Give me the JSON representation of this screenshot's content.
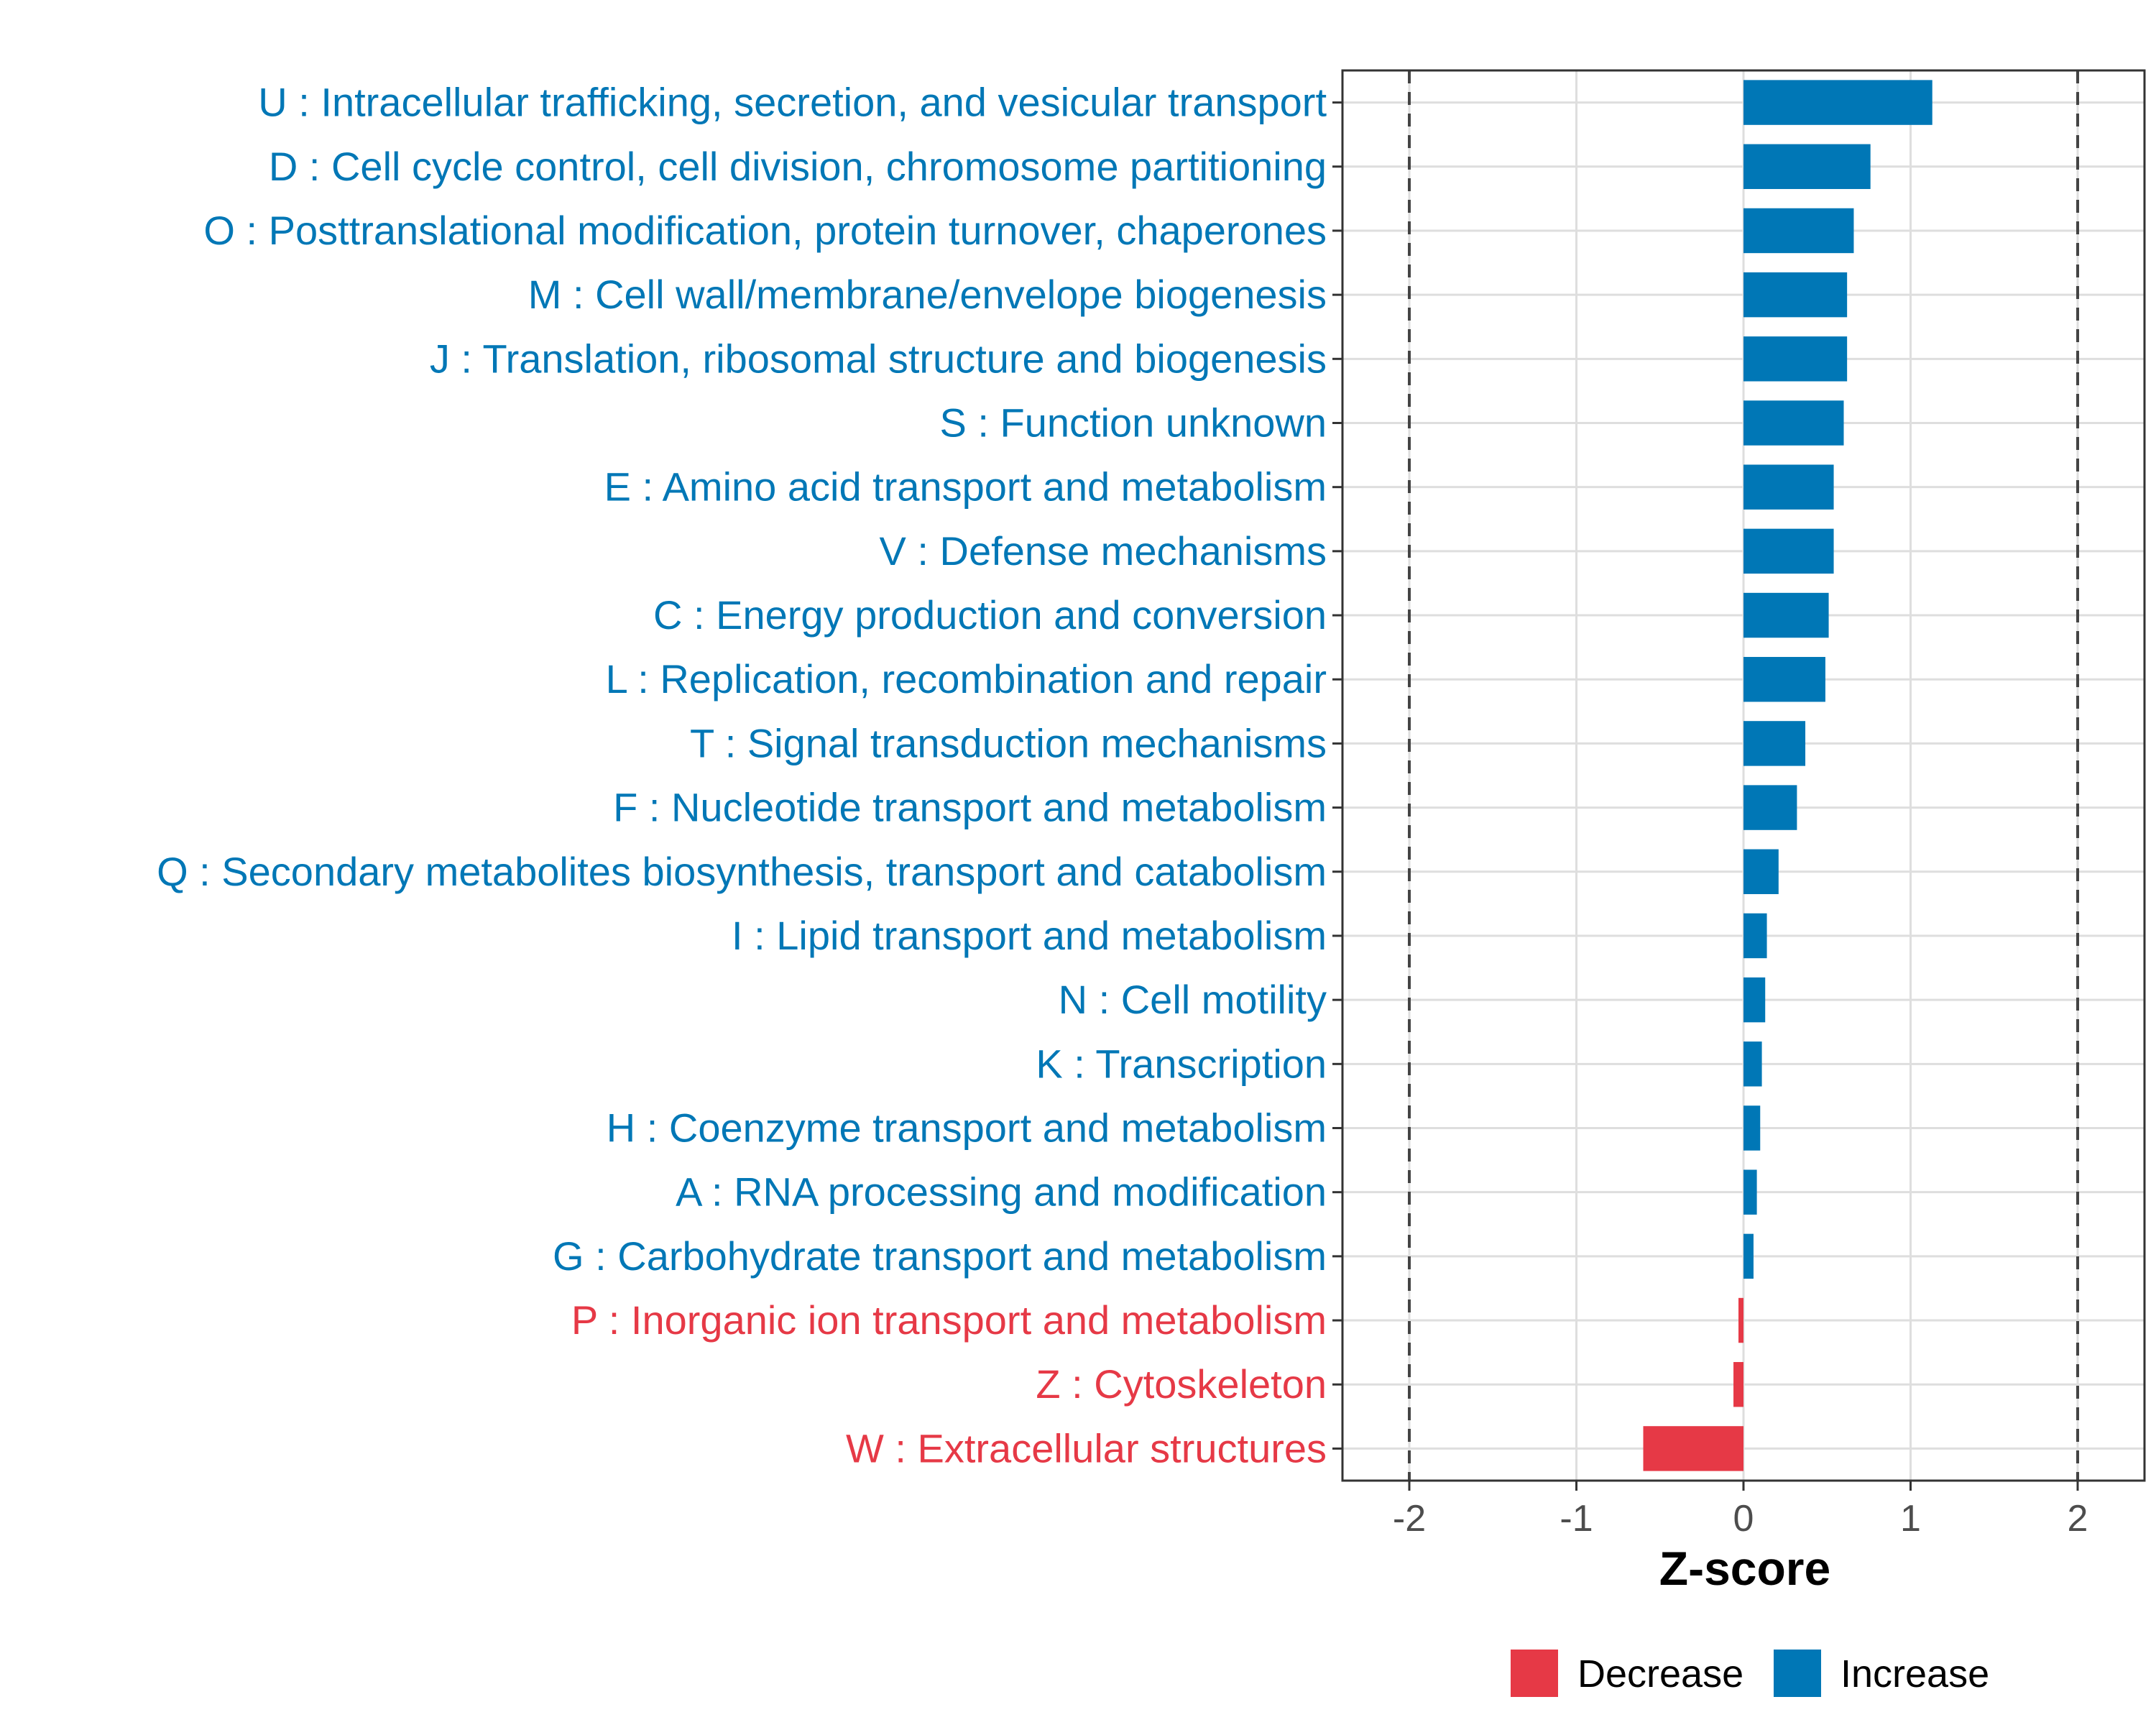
{
  "chart_data": {
    "type": "bar",
    "orientation": "horizontal",
    "title": "",
    "xlabel": "Z-score",
    "ylabel": "",
    "xlim": [
      -2.4,
      2.4
    ],
    "xticks": [
      -2,
      -1,
      0,
      1,
      2
    ],
    "xtick_labels": [
      "-2",
      "-1",
      "0",
      "1",
      "2"
    ],
    "reference_lines": [
      -2,
      2
    ],
    "grid": true,
    "colors": {
      "Decrease": "#e63946",
      "Increase": "#0077b6"
    },
    "legend": {
      "position": "bottom",
      "entries": [
        {
          "name": "Decrease",
          "color": "#e63946"
        },
        {
          "name": "Increase",
          "color": "#0077b6"
        }
      ]
    },
    "categories": [
      "U : Intracellular trafficking, secretion, and vesicular transport",
      "D : Cell cycle control, cell division, chromosome partitioning",
      "O : Posttranslational modification, protein turnover, chaperones",
      "M : Cell wall/membrane/envelope biogenesis",
      "J : Translation, ribosomal structure and biogenesis",
      "S : Function unknown",
      "E : Amino acid transport and metabolism",
      "V : Defense mechanisms",
      "C : Energy production and conversion",
      "L : Replication, recombination and repair",
      "T : Signal transduction mechanisms",
      "F : Nucleotide transport and metabolism",
      "Q : Secondary metabolites biosynthesis, transport and catabolism",
      "I : Lipid transport and metabolism",
      "N : Cell motility",
      "K : Transcription",
      "H : Coenzyme transport and metabolism",
      "A : RNA processing and modification",
      "G : Carbohydrate transport and metabolism",
      "P : Inorganic ion transport and metabolism",
      "Z : Cytoskeleton",
      "W : Extracellular structures"
    ],
    "values": [
      1.13,
      0.76,
      0.66,
      0.62,
      0.62,
      0.6,
      0.54,
      0.54,
      0.51,
      0.49,
      0.37,
      0.32,
      0.21,
      0.14,
      0.13,
      0.11,
      0.1,
      0.08,
      0.06,
      -0.03,
      -0.06,
      -0.6
    ],
    "groups": [
      "Increase",
      "Increase",
      "Increase",
      "Increase",
      "Increase",
      "Increase",
      "Increase",
      "Increase",
      "Increase",
      "Increase",
      "Increase",
      "Increase",
      "Increase",
      "Increase",
      "Increase",
      "Increase",
      "Increase",
      "Increase",
      "Increase",
      "Decrease",
      "Decrease",
      "Decrease"
    ]
  }
}
